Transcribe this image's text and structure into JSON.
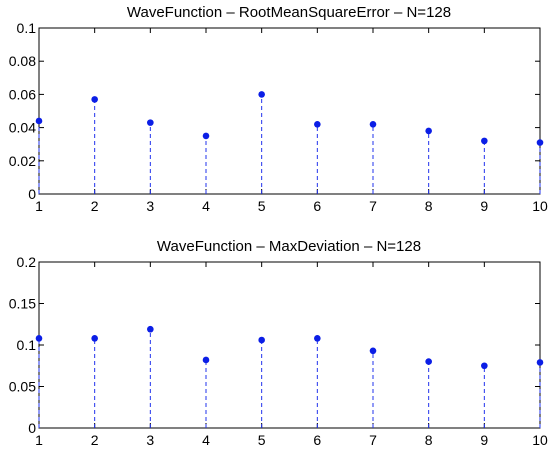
{
  "chart_data": [
    {
      "type": "stem",
      "title": "WaveFunction – RootMeanSquareError – N=128",
      "xlabel": "",
      "ylabel": "",
      "x": [
        1,
        2,
        3,
        4,
        5,
        6,
        7,
        8,
        9,
        10
      ],
      "values": [
        0.044,
        0.057,
        0.043,
        0.035,
        0.06,
        0.042,
        0.042,
        0.038,
        0.032,
        0.031
      ],
      "xlim": [
        1,
        10
      ],
      "ylim": [
        0,
        0.1
      ],
      "xticks": [
        "1",
        "2",
        "3",
        "4",
        "5",
        "6",
        "7",
        "8",
        "9",
        "10"
      ],
      "yticks": [
        "0",
        "0.02",
        "0.04",
        "0.06",
        "0.08",
        "0.1"
      ],
      "ytick_values": [
        0,
        0.02,
        0.04,
        0.06,
        0.08,
        0.1
      ],
      "grid": false,
      "stem_color": "#2233ee",
      "marker_color": "#0b1ee6"
    },
    {
      "type": "stem",
      "title": "WaveFunction – MaxDeviation – N=128",
      "xlabel": "",
      "ylabel": "",
      "x": [
        1,
        2,
        3,
        4,
        5,
        6,
        7,
        8,
        9,
        10
      ],
      "values": [
        0.108,
        0.108,
        0.119,
        0.082,
        0.106,
        0.108,
        0.093,
        0.08,
        0.075,
        0.079
      ],
      "xlim": [
        1,
        10
      ],
      "ylim": [
        0,
        0.2
      ],
      "xticks": [
        "1",
        "2",
        "3",
        "4",
        "5",
        "6",
        "7",
        "8",
        "9",
        "10"
      ],
      "yticks": [
        "0",
        "0.05",
        "0.1",
        "0.15",
        "0.2"
      ],
      "ytick_values": [
        0,
        0.05,
        0.1,
        0.15,
        0.2
      ],
      "grid": false,
      "stem_color": "#2233ee",
      "marker_color": "#0b1ee6"
    }
  ]
}
